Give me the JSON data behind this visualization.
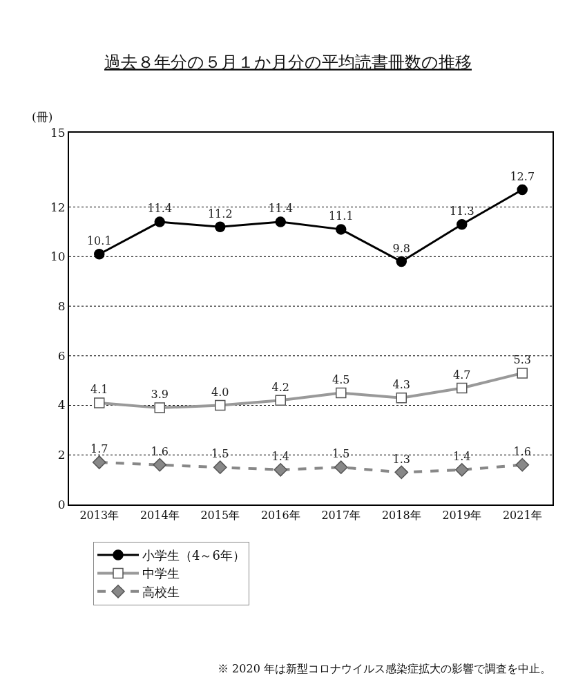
{
  "chart_data": {
    "type": "line",
    "title": "過去８年分の５月１か月分の平均読書冊数の推移",
    "ylabel": "(冊)",
    "categories": [
      "2013年",
      "2014年",
      "2015年",
      "2016年",
      "2017年",
      "2018年",
      "2019年",
      "2021年"
    ],
    "series": [
      {
        "name": "小学生（4～6年）",
        "color": "#000000",
        "marker": "circle",
        "line_style": "solid",
        "values": [
          10.1,
          11.4,
          11.2,
          11.4,
          11.1,
          9.8,
          11.3,
          12.7
        ],
        "value_labels": [
          "10.1",
          "11.4",
          "11.2",
          "11.4",
          "11.1",
          "9.8",
          "11.3",
          "12.7"
        ]
      },
      {
        "name": "中学生",
        "color": "#999999",
        "marker": "square",
        "line_style": "solid",
        "values": [
          4.1,
          3.9,
          4.0,
          4.2,
          4.5,
          4.3,
          4.7,
          5.3
        ],
        "value_labels": [
          "4.1",
          "3.9",
          "4.0",
          "4.2",
          "4.5",
          "4.3",
          "4.7",
          "5.3"
        ]
      },
      {
        "name": "高校生",
        "color": "#888888",
        "marker": "diamond",
        "line_style": "dashed",
        "values": [
          1.7,
          1.6,
          1.5,
          1.4,
          1.5,
          1.3,
          1.4,
          1.6
        ],
        "value_labels": [
          "1.7",
          "1.6",
          "1.5",
          "1.4",
          "1.5",
          "1.3",
          "1.4",
          "1.6"
        ]
      }
    ],
    "ylim": [
      0,
      15
    ],
    "yticks": [
      0,
      2,
      4,
      6,
      8,
      10,
      12,
      15
    ],
    "grid": "y",
    "legend": "bottom left",
    "annotations": [
      "※ 2020 年は新型コロナウイルス感染症拡大の影響で調査を中止。"
    ]
  }
}
